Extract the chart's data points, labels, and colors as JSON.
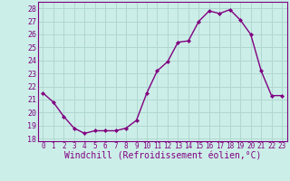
{
  "x": [
    0,
    1,
    2,
    3,
    4,
    5,
    6,
    7,
    8,
    9,
    10,
    11,
    12,
    13,
    14,
    15,
    16,
    17,
    18,
    19,
    20,
    21,
    22,
    23
  ],
  "y": [
    21.5,
    20.8,
    19.7,
    18.8,
    18.4,
    18.6,
    18.6,
    18.6,
    18.8,
    19.4,
    21.5,
    23.2,
    23.9,
    25.4,
    25.5,
    27.0,
    27.8,
    27.6,
    27.9,
    27.1,
    26.0,
    23.2,
    21.3,
    21.3
  ],
  "line_color": "#800080",
  "marker": "D",
  "marker_size": 2,
  "linewidth": 1.0,
  "background_color": "#cceee8",
  "grid_color": "#b0d8d0",
  "xlabel": "Windchill (Refroidissement éolien,°C)",
  "xlabel_fontsize": 7,
  "ylabel_ticks": [
    18,
    19,
    20,
    21,
    22,
    23,
    24,
    25,
    26,
    27,
    28
  ],
  "xlim": [
    -0.5,
    23.5
  ],
  "ylim": [
    17.8,
    28.5
  ],
  "xtick_labels": [
    "0",
    "1",
    "2",
    "3",
    "4",
    "5",
    "6",
    "7",
    "8",
    "9",
    "10",
    "11",
    "12",
    "13",
    "14",
    "15",
    "16",
    "17",
    "18",
    "19",
    "20",
    "21",
    "22",
    "23"
  ],
  "tick_color": "#800080",
  "ytick_fontsize": 6,
  "xtick_fontsize": 5.5,
  "label_fontfamily": "monospace"
}
